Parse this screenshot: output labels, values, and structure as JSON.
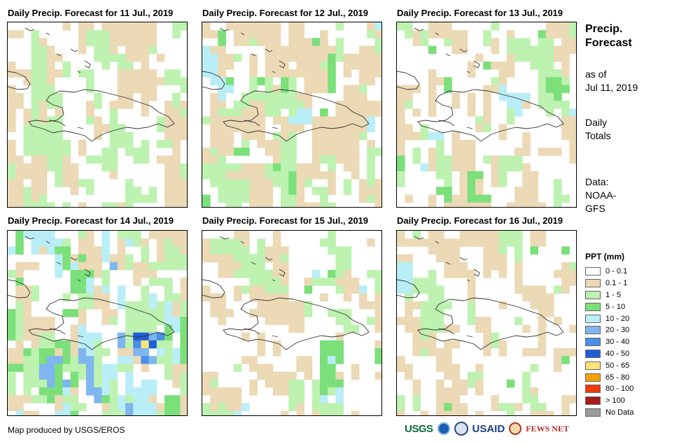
{
  "panels": [
    {
      "title": "Daily Precip. Forecast for 11 Jul., 2019"
    },
    {
      "title": "Daily Precip. Forecast for 12 Jul., 2019"
    },
    {
      "title": "Daily Precip. Forecast for 13 Jul., 2019"
    },
    {
      "title": "Daily Precip. Forecast for 14 Jul., 2019"
    },
    {
      "title": "Daily Precip. Forecast for 15 Jul., 2019"
    },
    {
      "title": "Daily Precip. Forecast for 16 Jul., 2019"
    }
  ],
  "sidebar": {
    "title_line1": "Precip.",
    "title_line2": "Forecast",
    "asof_line1": "as of",
    "asof_line2": "Jul 11, 2019",
    "totals_line1": "Daily",
    "totals_line2": "Totals",
    "data_line1": "Data:",
    "data_line2": "NOAA-",
    "data_line3": "GFS"
  },
  "legend": {
    "title": "PPT (mm)",
    "items": [
      {
        "label": "0 - 0.1",
        "color": "#ffffff"
      },
      {
        "label": "0.1 - 1",
        "color": "#ecd9b5"
      },
      {
        "label": "1 - 5",
        "color": "#bdf2b0"
      },
      {
        "label": "5 - 10",
        "color": "#7be07a"
      },
      {
        "label": "10 - 20",
        "color": "#b9eef7"
      },
      {
        "label": "20 - 30",
        "color": "#7fb6ef"
      },
      {
        "label": "30 - 40",
        "color": "#4a8fe8"
      },
      {
        "label": "40 - 50",
        "color": "#1f5fd6"
      },
      {
        "label": "50 - 65",
        "color": "#fbe57a"
      },
      {
        "label": "65 - 80",
        "color": "#f5a20a"
      },
      {
        "label": "80 - 100",
        "color": "#ee3a0a"
      },
      {
        "label": "> 100",
        "color": "#a61b1b"
      },
      {
        "label": "No Data",
        "color": "#9a9a9a"
      }
    ]
  },
  "credit": "Map produced by USGS/EROS",
  "logos": {
    "usgs": "USGS",
    "usaid": "USAID",
    "fews": "FEWS NET"
  }
}
